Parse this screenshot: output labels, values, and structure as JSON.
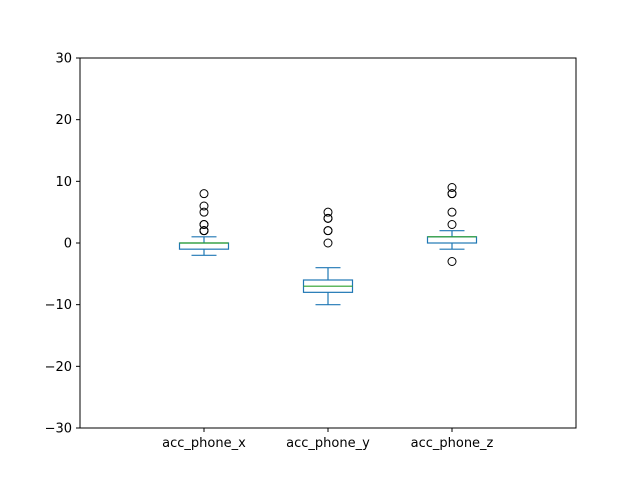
{
  "chart_data": {
    "type": "boxplot",
    "title": "",
    "xlabel": "",
    "ylabel": "",
    "ylim": [
      -30,
      30
    ],
    "yticks": [
      -30,
      -20,
      -10,
      0,
      10,
      20,
      30
    ],
    "ytick_labels": [
      "−30",
      "−20",
      "−10",
      "0",
      "10",
      "20",
      "30"
    ],
    "grid": false,
    "categories": [
      "acc_phone_x",
      "acc_phone_y",
      "acc_phone_z"
    ],
    "boxes": [
      {
        "category": "acc_phone_x",
        "whisker_low": -2,
        "q1": -1,
        "median": 0,
        "q3": 0,
        "whisker_high": 1,
        "outliers": [
          2,
          2,
          2,
          3,
          3,
          5,
          6,
          8
        ]
      },
      {
        "category": "acc_phone_y",
        "whisker_low": -10,
        "q1": -8,
        "median": -7,
        "q3": -6,
        "whisker_high": -4,
        "outliers": [
          0,
          2,
          2,
          4,
          4,
          5
        ]
      },
      {
        "category": "acc_phone_z",
        "whisker_low": -1,
        "q1": 0,
        "median": 1,
        "q3": 1,
        "whisker_high": 2,
        "outliers": [
          -3,
          3,
          5,
          8,
          8,
          9
        ]
      }
    ],
    "colors": {
      "box": "#1f77b4",
      "median": "#2ca02c",
      "outlier": "#000000"
    }
  }
}
